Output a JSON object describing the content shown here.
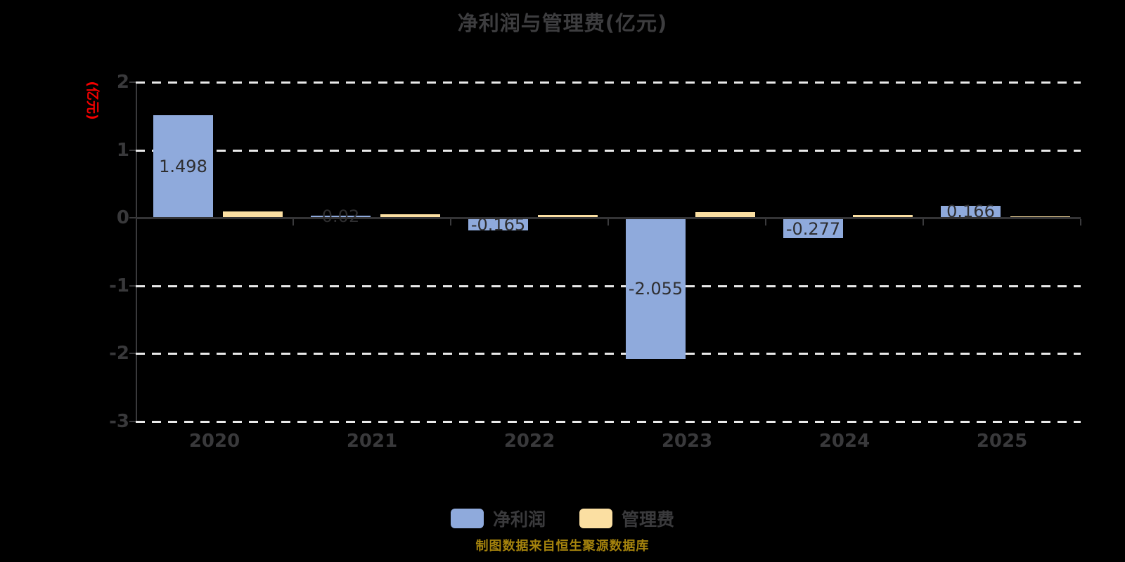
{
  "title": "净利润与管理费(亿元)",
  "y_axis": {
    "unit_label": "(亿元)",
    "unit_label_color": "#f40000",
    "ticks": [
      "2",
      "1",
      "0",
      "-1",
      "-2",
      "-3"
    ],
    "tick_values": [
      2,
      1,
      0,
      -1,
      -2,
      -3
    ]
  },
  "legend": [
    {
      "label": "净利润",
      "color": "#8faadc"
    },
    {
      "label": "管理费",
      "color": "#fbdfa2"
    }
  ],
  "footer": "制图数据来自恒生聚源数据库",
  "colors": {
    "background": "#000000",
    "net_profit_bar": "#8faadc",
    "mgmt_fee_bar": "#fbdfa2",
    "gridline": "#e9e9e9",
    "axis_line": "#3a3a3c",
    "title_text": "#3d3d3f",
    "bar_label_text": "#2e2e30",
    "footer_text": "#a5830d"
  },
  "chart_data": {
    "type": "bar",
    "title": "净利润与管理费(亿元)",
    "categories": [
      "2020",
      "2021",
      "2022",
      "2023",
      "2024",
      "2025"
    ],
    "series": [
      {
        "name": "净利润",
        "color": "#8faadc",
        "values": [
          1.498,
          0.02,
          -0.165,
          -2.055,
          -0.277,
          0.166
        ],
        "labels": [
          "1.498",
          "0.02",
          "-0.165",
          "-2.055",
          "-0.277",
          "0.166"
        ]
      },
      {
        "name": "管理费",
        "color": "#fbdfa2",
        "values": [
          0.09,
          0.04,
          0.03,
          0.07,
          0.03,
          0.01
        ],
        "labels": [
          "",
          "",
          "",
          "",
          "",
          ""
        ]
      }
    ],
    "xlabel": "",
    "ylabel": "(亿元)",
    "ylim": [
      -3,
      2
    ],
    "grid": "horizontal-dashed-white",
    "legend_position": "bottom"
  }
}
